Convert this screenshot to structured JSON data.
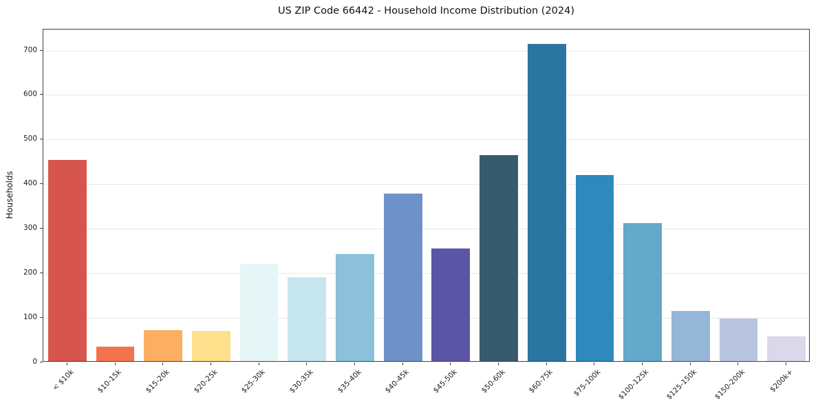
{
  "chart_data": {
    "type": "bar",
    "title": "US ZIP Code 66442 - Household Income Distribution (2024)",
    "xlabel": "",
    "ylabel": "Households",
    "categories": [
      "< $10k",
      "$10-15k",
      "$15-20k",
      "$20-25k",
      "$25-30k",
      "$30-35k",
      "$35-40k",
      "$40-45k",
      "$45-50k",
      "$50-60k",
      "$60-75k",
      "$75-100k",
      "$100-125k",
      "$125-150k",
      "$150-200k",
      "$200k+"
    ],
    "values": [
      452,
      32,
      70,
      68,
      218,
      188,
      240,
      377,
      253,
      462,
      712,
      418,
      310,
      113,
      95,
      55
    ],
    "bar_colors": [
      "#d6564d",
      "#f2744e",
      "#fcae63",
      "#fce08b",
      "#e6f5f5",
      "#c6e6ee",
      "#8cc1d9",
      "#6e92c8",
      "#5a55a5",
      "#375a6d",
      "#2a76a0",
      "#2f88be",
      "#64a8ca",
      "#95b6d7",
      "#b9c4e1",
      "#dbd8e9"
    ],
    "yticks": [
      0,
      100,
      200,
      300,
      400,
      500,
      600,
      700
    ],
    "ylim": [
      0,
      748
    ],
    "grid": true,
    "legend": false
  }
}
